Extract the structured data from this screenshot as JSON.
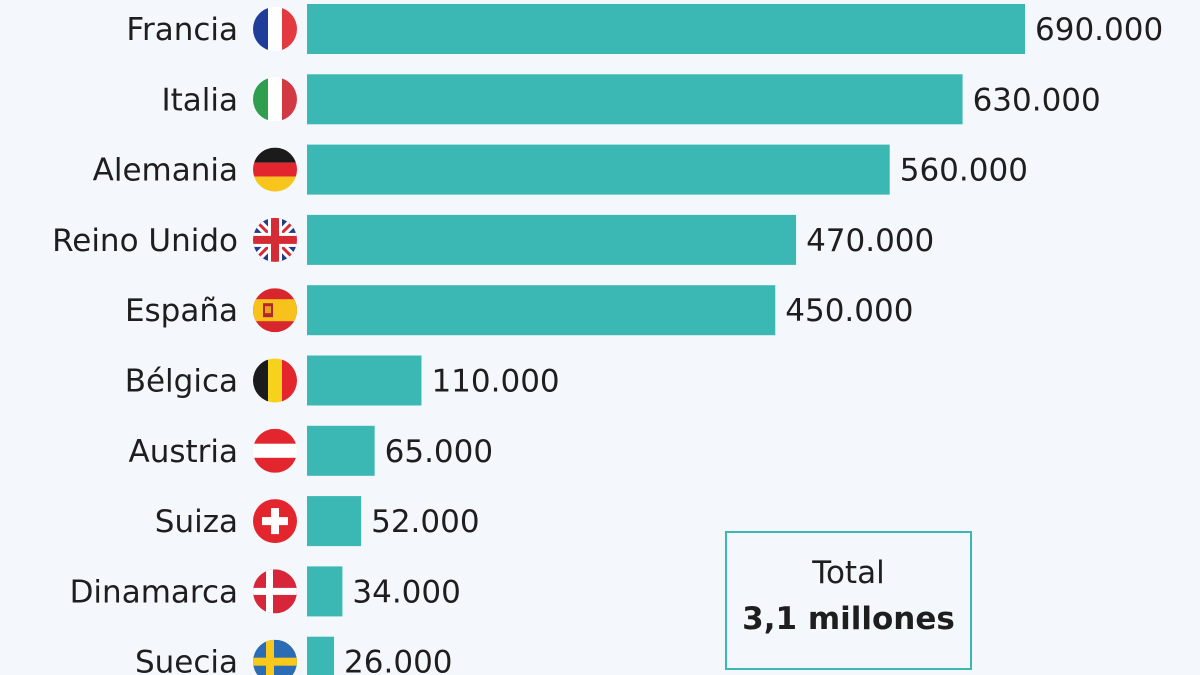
{
  "chart_data": {
    "type": "bar",
    "orientation": "horizontal",
    "categories": [
      "Francia",
      "Italia",
      "Alemania",
      "Reino Unido",
      "España",
      "Bélgica",
      "Austria",
      "Suiza",
      "Dinamarca",
      "Suecia"
    ],
    "values": [
      690000,
      630000,
      560000,
      470000,
      450000,
      110000,
      65000,
      52000,
      34000,
      26000
    ],
    "value_labels": [
      "690.000",
      "630.000",
      "560.000",
      "470.000",
      "450.000",
      "110.000",
      "65.000",
      "52.000",
      "34.000",
      "26.000"
    ],
    "flags": [
      "flag-france-icon",
      "flag-italy-icon",
      "flag-germany-icon",
      "flag-uk-icon",
      "flag-spain-icon",
      "flag-belgium-icon",
      "flag-austria-icon",
      "flag-switzerland-icon",
      "flag-denmark-icon",
      "flag-sweden-icon"
    ],
    "bar_color": "#3cb8b4",
    "xlim": [
      0,
      690000
    ],
    "title": "",
    "xlabel": "",
    "ylabel": "",
    "grid": false,
    "legend": false
  },
  "total": {
    "label": "Total",
    "value": "3,1 millones"
  }
}
